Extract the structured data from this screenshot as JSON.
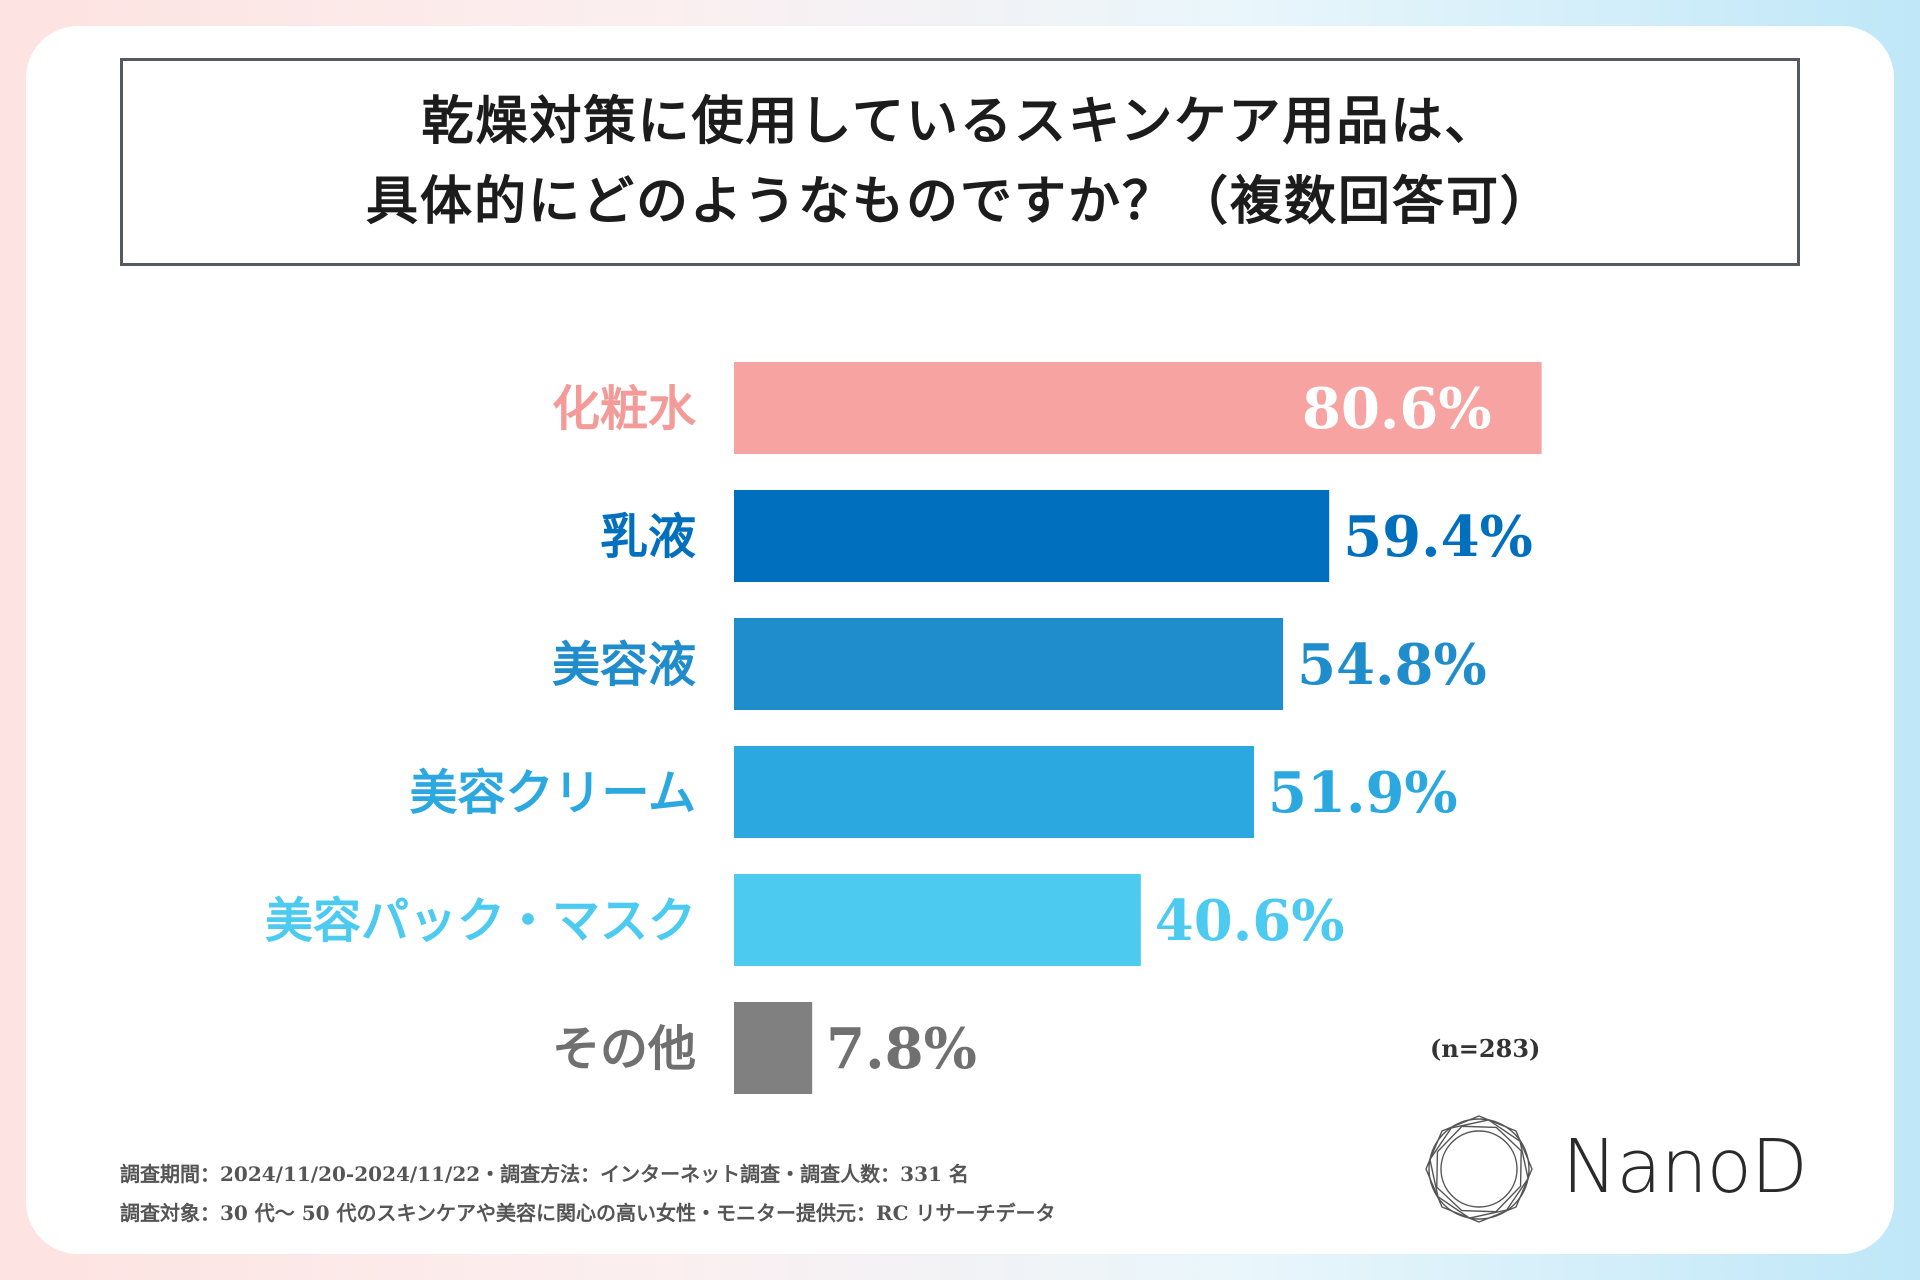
{
  "title": {
    "line1": "乾燥対策に使用しているスキンケア用品は、",
    "line2": "具体的にどのようなものですか？（複数回答可）"
  },
  "chart_data": {
    "type": "bar",
    "orientation": "horizontal",
    "categories": [
      "化粧水",
      "乳液",
      "美容液",
      "美容クリーム",
      "美容パック・マスク",
      "その他"
    ],
    "values": [
      80.6,
      59.4,
      54.8,
      51.9,
      40.6,
      7.8
    ],
    "value_labels": [
      "80.6%",
      "59.4%",
      "54.8%",
      "51.9%",
      "40.6%",
      "7.8%"
    ],
    "colors": [
      "#f6a3a1",
      "#0070be",
      "#1f8ccc",
      "#2ba8e0",
      "#4ccaf0",
      "#808080"
    ],
    "xlim": [
      0,
      100
    ],
    "unit": "%",
    "sample_size": "(n=283)"
  },
  "footnotes": {
    "line1": "調査期間：2024/11/20-2024/11/22・調査方法：インターネット調査・調査人数：331 名",
    "line2": "調査対象：30 代～ 50 代のスキンケアや美容に関心の高い女性・モニター提供元：RC リサーチデータ"
  },
  "logo": {
    "text": "NanoD"
  }
}
